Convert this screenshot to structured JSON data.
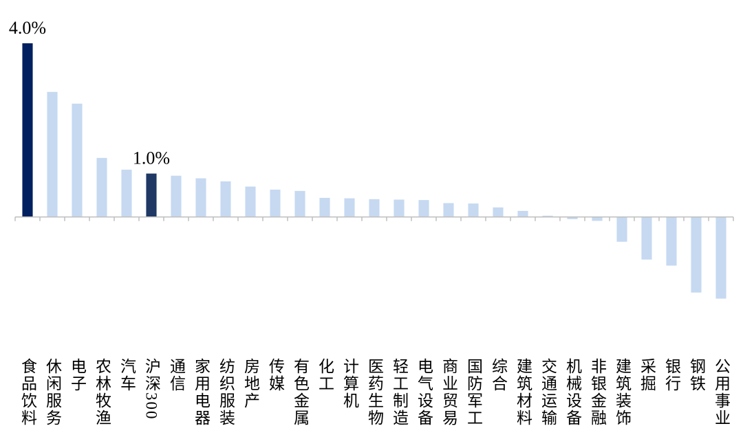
{
  "chart_data": {
    "type": "bar",
    "categories": [
      "食品饮料",
      "休闲服务",
      "电子",
      "农林牧渔",
      "汽车",
      "沪深300",
      "通信",
      "家用电器",
      "纺织服装",
      "房地产",
      "传媒",
      "有色金属",
      "化工",
      "计算机",
      "医药生物",
      "轻工制造",
      "电气设备",
      "商业贸易",
      "国防军工",
      "综合",
      "建筑材料",
      "交通运输",
      "机械设备",
      "非银金融",
      "建筑装饰",
      "采掘",
      "银行",
      "钢铁",
      "公用事业"
    ],
    "values": [
      4.0,
      2.88,
      2.61,
      1.36,
      1.09,
      1.0,
      0.95,
      0.89,
      0.82,
      0.7,
      0.63,
      0.6,
      0.44,
      0.43,
      0.41,
      0.4,
      0.39,
      0.32,
      0.31,
      0.22,
      0.14,
      0.03,
      -0.05,
      -0.09,
      -0.57,
      -0.98,
      -1.12,
      -1.74,
      -1.88
    ],
    "value_labels": [
      "4.0%",
      null,
      null,
      null,
      null,
      "1.0%",
      null,
      null,
      null,
      null,
      null,
      null,
      null,
      null,
      null,
      null,
      null,
      null,
      null,
      null,
      null,
      null,
      null,
      null,
      null,
      null,
      null,
      null,
      null
    ],
    "colors": [
      "#002060",
      "#c6d9f1",
      "#c6d9f1",
      "#c6d9f1",
      "#c6d9f1",
      "#1f3864",
      "#c6d9f1",
      "#c6d9f1",
      "#c6d9f1",
      "#c6d9f1",
      "#c6d9f1",
      "#c6d9f1",
      "#c6d9f1",
      "#c6d9f1",
      "#c6d9f1",
      "#c6d9f1",
      "#c6d9f1",
      "#c6d9f1",
      "#c6d9f1",
      "#c6d9f1",
      "#c6d9f1",
      "#c6d9f1",
      "#c6d9f1",
      "#c6d9f1",
      "#c6d9f1",
      "#c6d9f1",
      "#c6d9f1",
      "#c6d9f1",
      "#c6d9f1"
    ],
    "ylim": [
      -3.2,
      4.5
    ]
  }
}
